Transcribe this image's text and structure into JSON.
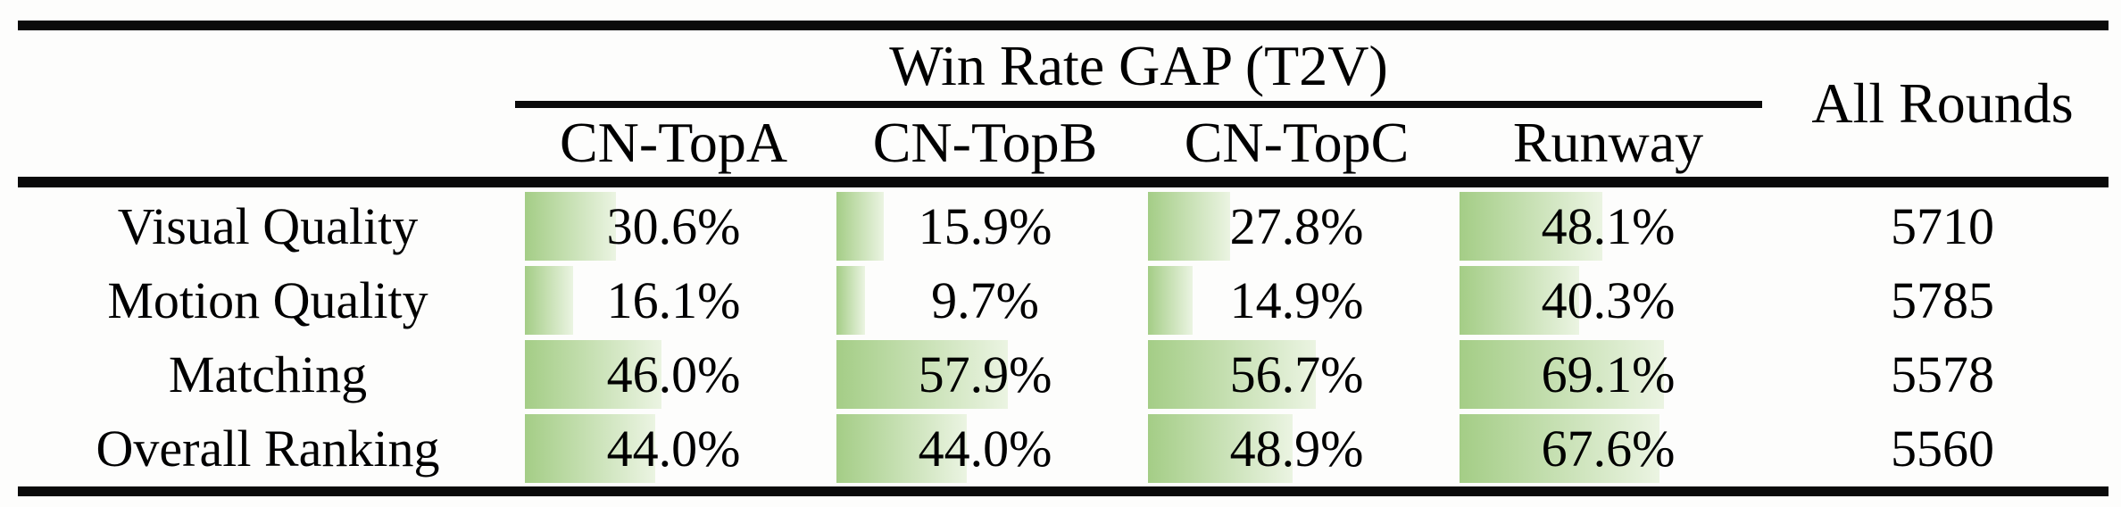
{
  "table": {
    "header": {
      "group_title": "Win Rate GAP (T2V)",
      "columns": [
        "CN-TopA",
        "CN-TopB",
        "CN-TopC",
        "Runway"
      ],
      "all_rounds": "All Rounds"
    },
    "rows": [
      {
        "label": "Visual Quality",
        "cells": [
          {
            "value": 30.6,
            "text": "30.6%"
          },
          {
            "value": 15.9,
            "text": "15.9%"
          },
          {
            "value": 27.8,
            "text": "27.8%"
          },
          {
            "value": 48.1,
            "text": "48.1%"
          }
        ],
        "all_rounds": "5710"
      },
      {
        "label": "Motion Quality",
        "cells": [
          {
            "value": 16.1,
            "text": "16.1%"
          },
          {
            "value": 9.7,
            "text": "9.7%"
          },
          {
            "value": 14.9,
            "text": "14.9%"
          },
          {
            "value": 40.3,
            "text": "40.3%"
          }
        ],
        "all_rounds": "5785"
      },
      {
        "label": "Matching",
        "cells": [
          {
            "value": 46.0,
            "text": "46.0%"
          },
          {
            "value": 57.9,
            "text": "57.9%"
          },
          {
            "value": 56.7,
            "text": "56.7%"
          },
          {
            "value": 69.1,
            "text": "69.1%"
          }
        ],
        "all_rounds": "5578"
      },
      {
        "label": "Overall Ranking",
        "cells": [
          {
            "value": 44.0,
            "text": "44.0%"
          },
          {
            "value": 44.0,
            "text": "44.0%"
          },
          {
            "value": 48.9,
            "text": "48.9%"
          },
          {
            "value": 67.6,
            "text": "67.6%"
          }
        ],
        "all_rounds": "5560"
      }
    ],
    "colors": {
      "bar_start": "#a4cd86",
      "bar_end": "#ebf4e2",
      "rule": "#0a0a0a"
    }
  },
  "chart_data": {
    "type": "table",
    "title": "Win Rate GAP (T2V)",
    "categories": [
      "Visual Quality",
      "Motion Quality",
      "Matching",
      "Overall Ranking"
    ],
    "series": [
      {
        "name": "CN-TopA",
        "values": [
          30.6,
          16.1,
          46.0,
          44.0
        ]
      },
      {
        "name": "CN-TopB",
        "values": [
          15.9,
          9.7,
          57.9,
          44.0
        ]
      },
      {
        "name": "CN-TopC",
        "values": [
          27.8,
          14.9,
          56.7,
          48.9
        ]
      },
      {
        "name": "Runway",
        "values": [
          48.1,
          40.3,
          69.1,
          67.6
        ]
      }
    ],
    "extra_column": {
      "name": "All Rounds",
      "values": [
        5710,
        5785,
        5578,
        5560
      ]
    },
    "unit": "%",
    "bars_in_cells": true
  }
}
